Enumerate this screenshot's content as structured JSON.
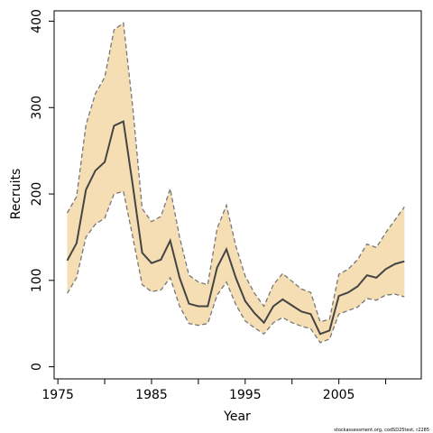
{
  "chart_data": {
    "type": "line",
    "xlabel": "Year",
    "ylabel": "Recruits",
    "footnote": "stockassessment.org, codSD25test, r2285",
    "x": [
      1976,
      1977,
      1978,
      1979,
      1980,
      1981,
      1982,
      1983,
      1984,
      1985,
      1986,
      1987,
      1988,
      1989,
      1990,
      1991,
      1992,
      1993,
      1994,
      1995,
      1996,
      1997,
      1998,
      1999,
      2000,
      2001,
      2002,
      2003,
      2004,
      2005,
      2006,
      2007,
      2008,
      2009,
      2010,
      2011,
      2012
    ],
    "series": [
      {
        "name": "Estimate",
        "color": "#444444",
        "values": [
          123,
          143,
          205,
          227,
          237,
          279,
          284,
          210,
          132,
          120,
          124,
          146,
          103,
          73,
          70,
          70,
          115,
          136,
          103,
          76,
          62,
          51,
          70,
          78,
          71,
          64,
          61,
          38,
          42,
          82,
          86,
          93,
          106,
          103,
          113,
          119,
          122
        ]
      },
      {
        "name": "Upper",
        "color": "#777777",
        "values": [
          178,
          197,
          280,
          316,
          335,
          390,
          398,
          300,
          183,
          168,
          174,
          206,
          150,
          106,
          98,
          95,
          160,
          187,
          140,
          105,
          85,
          70,
          95,
          108,
          99,
          90,
          86,
          52,
          55,
          107,
          113,
          124,
          142,
          138,
          155,
          170,
          185
        ]
      },
      {
        "name": "Lower",
        "color": "#777777",
        "values": [
          85,
          103,
          150,
          165,
          172,
          200,
          203,
          150,
          95,
          87,
          89,
          103,
          70,
          50,
          48,
          50,
          83,
          98,
          72,
          53,
          45,
          38,
          51,
          57,
          51,
          47,
          44,
          28,
          32,
          61,
          65,
          69,
          79,
          77,
          83,
          84,
          81
        ]
      }
    ],
    "band_color": "#f5deb3",
    "xlim": [
      1974.6,
      2013.8
    ],
    "xticks": [
      1975,
      1985,
      1995,
      2005
    ],
    "minor_xticks": [
      1980,
      1990,
      2000,
      2010
    ],
    "ylim": [
      -14,
      412
    ],
    "yticks": [
      0,
      100,
      200,
      300,
      400
    ]
  }
}
